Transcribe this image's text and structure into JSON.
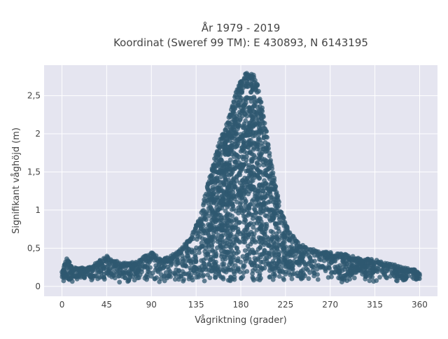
{
  "chart_data": {
    "type": "scatter",
    "title_line1": "År 1979 - 2019",
    "title_line2": "Koordinat (Sweref 99 TM): E 430893, N 6143195",
    "xlabel": "Vågriktning (grader)",
    "ylabel": "Signifikant våghöjd (m)",
    "xlim": [
      -18,
      378
    ],
    "ylim": [
      -0.13,
      2.9
    ],
    "x_ticks": [
      0,
      45,
      90,
      135,
      180,
      225,
      270,
      315,
      360
    ],
    "x_tick_labels": [
      "0",
      "45",
      "90",
      "135",
      "180",
      "225",
      "270",
      "315",
      "360"
    ],
    "y_ticks": [
      0,
      0.5,
      1,
      1.5,
      2,
      2.5
    ],
    "y_tick_labels": [
      "0",
      "0,5",
      "1",
      "1,5",
      "2",
      "2,5"
    ],
    "grid": true,
    "legend": "none",
    "colors": {
      "marker": "#2f5870",
      "plot_bg": "#e5e5f0",
      "grid": "#ffffff"
    },
    "series": [
      {
        "x": [
          0,
          5,
          10,
          20,
          30,
          45,
          60,
          75,
          90,
          100,
          110,
          120,
          130,
          135,
          140,
          145,
          150,
          155,
          160,
          165,
          170,
          175,
          180,
          185,
          190,
          195,
          200,
          205,
          210,
          215,
          220,
          225,
          230,
          240,
          250,
          260,
          270,
          285,
          300,
          315,
          330,
          345,
          360
        ],
        "y_max": [
          0.2,
          0.38,
          0.25,
          0.25,
          0.27,
          0.4,
          0.3,
          0.33,
          0.45,
          0.35,
          0.4,
          0.5,
          0.65,
          0.8,
          0.95,
          1.25,
          1.5,
          1.75,
          1.95,
          2.1,
          2.3,
          2.55,
          2.7,
          2.8,
          2.8,
          2.75,
          2.45,
          2.1,
          1.7,
          1.35,
          1.0,
          0.85,
          0.7,
          0.55,
          0.5,
          0.45,
          0.45,
          0.42,
          0.37,
          0.35,
          0.3,
          0.25,
          0.2
        ]
      }
    ]
  }
}
